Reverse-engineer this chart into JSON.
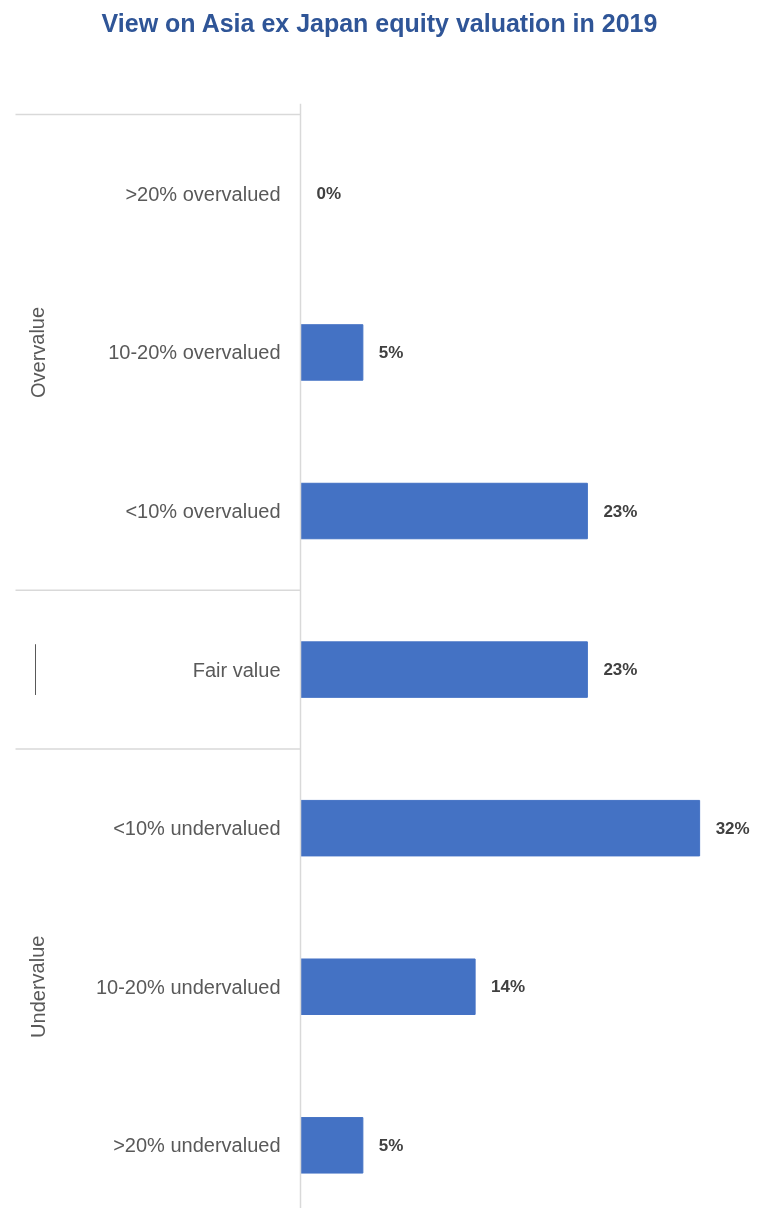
{
  "chart_data": {
    "type": "bar",
    "orientation": "horizontal",
    "title": "View on Asia ex Japan equity valuation in 2019",
    "categories": [
      ">20% overvalued",
      "10-20% overvalued",
      "<10% overvalued",
      "Fair value",
      "<10% undervalued",
      "10-20% undervalued",
      ">20% undervalued"
    ],
    "values": [
      0,
      5,
      23,
      23,
      32,
      14,
      5
    ],
    "value_labels": [
      "0%",
      "5%",
      "23%",
      "23%",
      "32%",
      "14%",
      "5%"
    ],
    "color": "#4472c4",
    "annotations": [
      "Overvalue",
      "Undervalue"
    ]
  }
}
